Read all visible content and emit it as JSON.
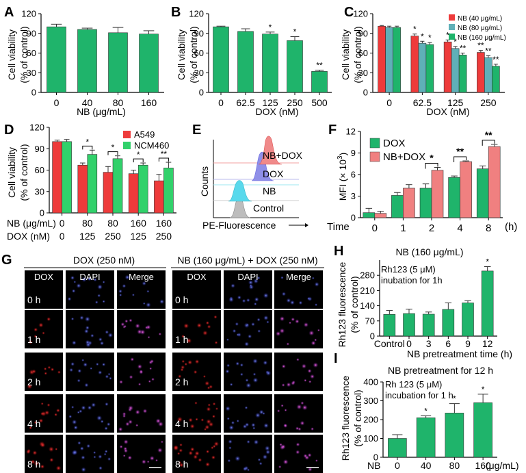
{
  "colors": {
    "green": "#1fb46b",
    "lightgreen": "#31d16b",
    "red": "#ee3b3b",
    "pink": "#f08080",
    "teal": "#5fb0b8",
    "blue": "#6a6ae0",
    "cyan": "#59d9ec",
    "gray": "#b8b8b8"
  },
  "chart_data": [
    {
      "panel": "A",
      "type": "bar",
      "ylabel_line1": "Cell viability",
      "ylabel_line2": "(% of control)",
      "xlabel": "NB (μg/mL)",
      "categories": [
        "0",
        "40",
        "80",
        "160"
      ],
      "series": [
        {
          "name": "NB",
          "values": [
            100,
            96,
            91,
            89
          ],
          "errors": [
            4,
            2,
            8,
            5
          ],
          "sig": [
            "",
            "",
            "",
            ""
          ]
        }
      ],
      "ylim": [
        0,
        120
      ],
      "yticks": [
        "0",
        "30",
        "60",
        "90",
        "120"
      ]
    },
    {
      "panel": "B",
      "type": "bar",
      "ylabel_line1": "Cell viability",
      "ylabel_line2": "(% of control)",
      "xlabel": "DOX (nM)",
      "categories": [
        "0",
        "62.5",
        "125",
        "250",
        "500"
      ],
      "series": [
        {
          "name": "DOX",
          "values": [
            100,
            93,
            89,
            79,
            32
          ],
          "errors": [
            1,
            4,
            3,
            6,
            2
          ],
          "sig": [
            "",
            "",
            "*",
            "*",
            "**"
          ]
        }
      ],
      "ylim": [
        0,
        120
      ],
      "yticks": [
        "0",
        "30",
        "60",
        "90",
        "120"
      ]
    },
    {
      "panel": "C",
      "type": "bar",
      "ylabel_line1": "Cell viability",
      "ylabel_line2": "(% of control)",
      "xlabel": "DOX (nM)",
      "categories": [
        "0",
        "62.5",
        "125",
        "250"
      ],
      "series": [
        {
          "name": "NB (40 μg/mL)",
          "values": [
            101,
            86,
            77,
            61
          ],
          "errors": [
            1,
            3,
            3,
            3
          ],
          "sig": [
            "",
            "*",
            "*",
            "**"
          ]
        },
        {
          "name": "NB (80 μg/mL)",
          "values": [
            99,
            75,
            67,
            53
          ],
          "errors": [
            2,
            3,
            3,
            3
          ],
          "sig": [
            "",
            "*",
            "*",
            "**"
          ]
        },
        {
          "name": "NB (160 μg/mL)",
          "values": [
            99,
            73,
            57,
            40
          ],
          "errors": [
            2,
            3,
            3,
            3
          ],
          "sig": [
            "",
            "*",
            "**",
            "**"
          ]
        }
      ],
      "ylim": [
        0,
        120
      ],
      "yticks": [
        "0",
        "30",
        "60",
        "90",
        "120"
      ]
    },
    {
      "panel": "D",
      "type": "bar",
      "ylabel_line1": "Cell viability",
      "ylabel_line2": "(% of control)",
      "row1_label": "NB (μg/mL)",
      "row1": [
        "0",
        "80",
        "80",
        "160",
        "160"
      ],
      "row2_label": "DOX (nM)",
      "row2": [
        "0",
        "125",
        "250",
        "125",
        "250"
      ],
      "series": [
        {
          "name": "A549",
          "values": [
            100,
            67,
            57,
            55,
            45
          ],
          "errors": [
            2,
            3,
            8,
            5,
            9
          ],
          "sig": [
            "",
            "",
            "",
            "",
            ""
          ]
        },
        {
          "name": "NCM460",
          "values": [
            100,
            82,
            76,
            67,
            63
          ],
          "errors": [
            3,
            6,
            4,
            3,
            8
          ],
          "sig": [
            "",
            "",
            "",
            "",
            ""
          ]
        }
      ],
      "brackets": [
        "*",
        "*",
        "*",
        "**"
      ],
      "ylim": [
        0,
        120
      ],
      "yticks": [
        "0",
        "30",
        "60",
        "90",
        "120"
      ]
    },
    {
      "panel": "E",
      "type": "histogram-overlay",
      "xlabel": "PE-Fluorescence",
      "ylabel": "Counts",
      "traces": [
        "NB+DOX",
        "DOX",
        "NB",
        "Control"
      ]
    },
    {
      "panel": "F",
      "type": "bar",
      "ylabel": "MFI (× 10",
      "ylabel_exp": "3",
      "xlabel_prefix": "Time",
      "xlabel_unit": "(h)",
      "categories": [
        "0",
        "1",
        "2",
        "4",
        "8"
      ],
      "series": [
        {
          "name": "DOX",
          "values": [
            0.7,
            3.1,
            4.1,
            5.6,
            6.8
          ],
          "errors": [
            0.6,
            0.4,
            0.6,
            0.2,
            0.4
          ],
          "sig": [
            "",
            "",
            "",
            "",
            ""
          ]
        },
        {
          "name": "NB+DOX",
          "values": [
            0.6,
            4.1,
            6.6,
            7.8,
            9.9
          ],
          "errors": [
            0.3,
            0.5,
            0.4,
            0.1,
            0.3
          ],
          "sig": [
            "",
            "",
            "",
            "",
            ""
          ]
        }
      ],
      "brackets": [
        "*",
        "**",
        "**"
      ],
      "ylim": [
        0,
        12
      ],
      "yticks": [
        "0",
        "3",
        "6",
        "9",
        "12"
      ]
    },
    {
      "panel": "H",
      "type": "bar",
      "title": "NB (160 μg/mL)",
      "ylabel_line1": "Rh123 fluorescence",
      "ylabel_line2": "(% of control)",
      "xlabel": "NB pretreatment time (h)",
      "categories": [
        "Control",
        "0",
        "3",
        "6",
        "9",
        "12"
      ],
      "series": [
        {
          "name": "Rh123",
          "values": [
            100,
            104,
            101,
            123,
            153,
            300
          ],
          "errors": [
            18,
            20,
            10,
            30,
            10,
            20
          ],
          "sig": [
            "",
            "",
            "",
            "",
            "",
            "*"
          ]
        }
      ],
      "annotation": [
        "Rh123 (5 μM)",
        "inubation for 1h"
      ],
      "ylim": [
        0,
        350
      ],
      "yticks": [
        "0",
        "70",
        "140",
        "210",
        "280"
      ]
    },
    {
      "panel": "I",
      "type": "bar",
      "title": "NB pretreatment for 12 h",
      "ylabel_line1": "Rh123 fluorescence",
      "ylabel_line2": "(% of control)",
      "xlabel_prefix": "NB",
      "xlabel_unit": "(μg/mL)",
      "categories": [
        "0",
        "40",
        "80",
        "160"
      ],
      "series": [
        {
          "name": "Rh123",
          "values": [
            100,
            210,
            235,
            290
          ],
          "errors": [
            20,
            10,
            50,
            45
          ],
          "sig": [
            "",
            "*",
            "*",
            "*"
          ]
        }
      ],
      "annotation": [
        "Rh 123 (5 μM)",
        "incubation for 1 h"
      ],
      "ylim": [
        0,
        400
      ],
      "yticks": [
        "0",
        "100",
        "200",
        "300",
        "400"
      ]
    }
  ],
  "panel_G": {
    "label": "G",
    "group_left": "DOX (250 nM)",
    "group_right": "NB (160 μg/mL) + DOX (250 nM)",
    "columns": [
      "DOX",
      "DAPI",
      "Merge"
    ],
    "rows": [
      "0 h",
      "1 h",
      "2 h",
      "4 h",
      "8 h"
    ]
  }
}
